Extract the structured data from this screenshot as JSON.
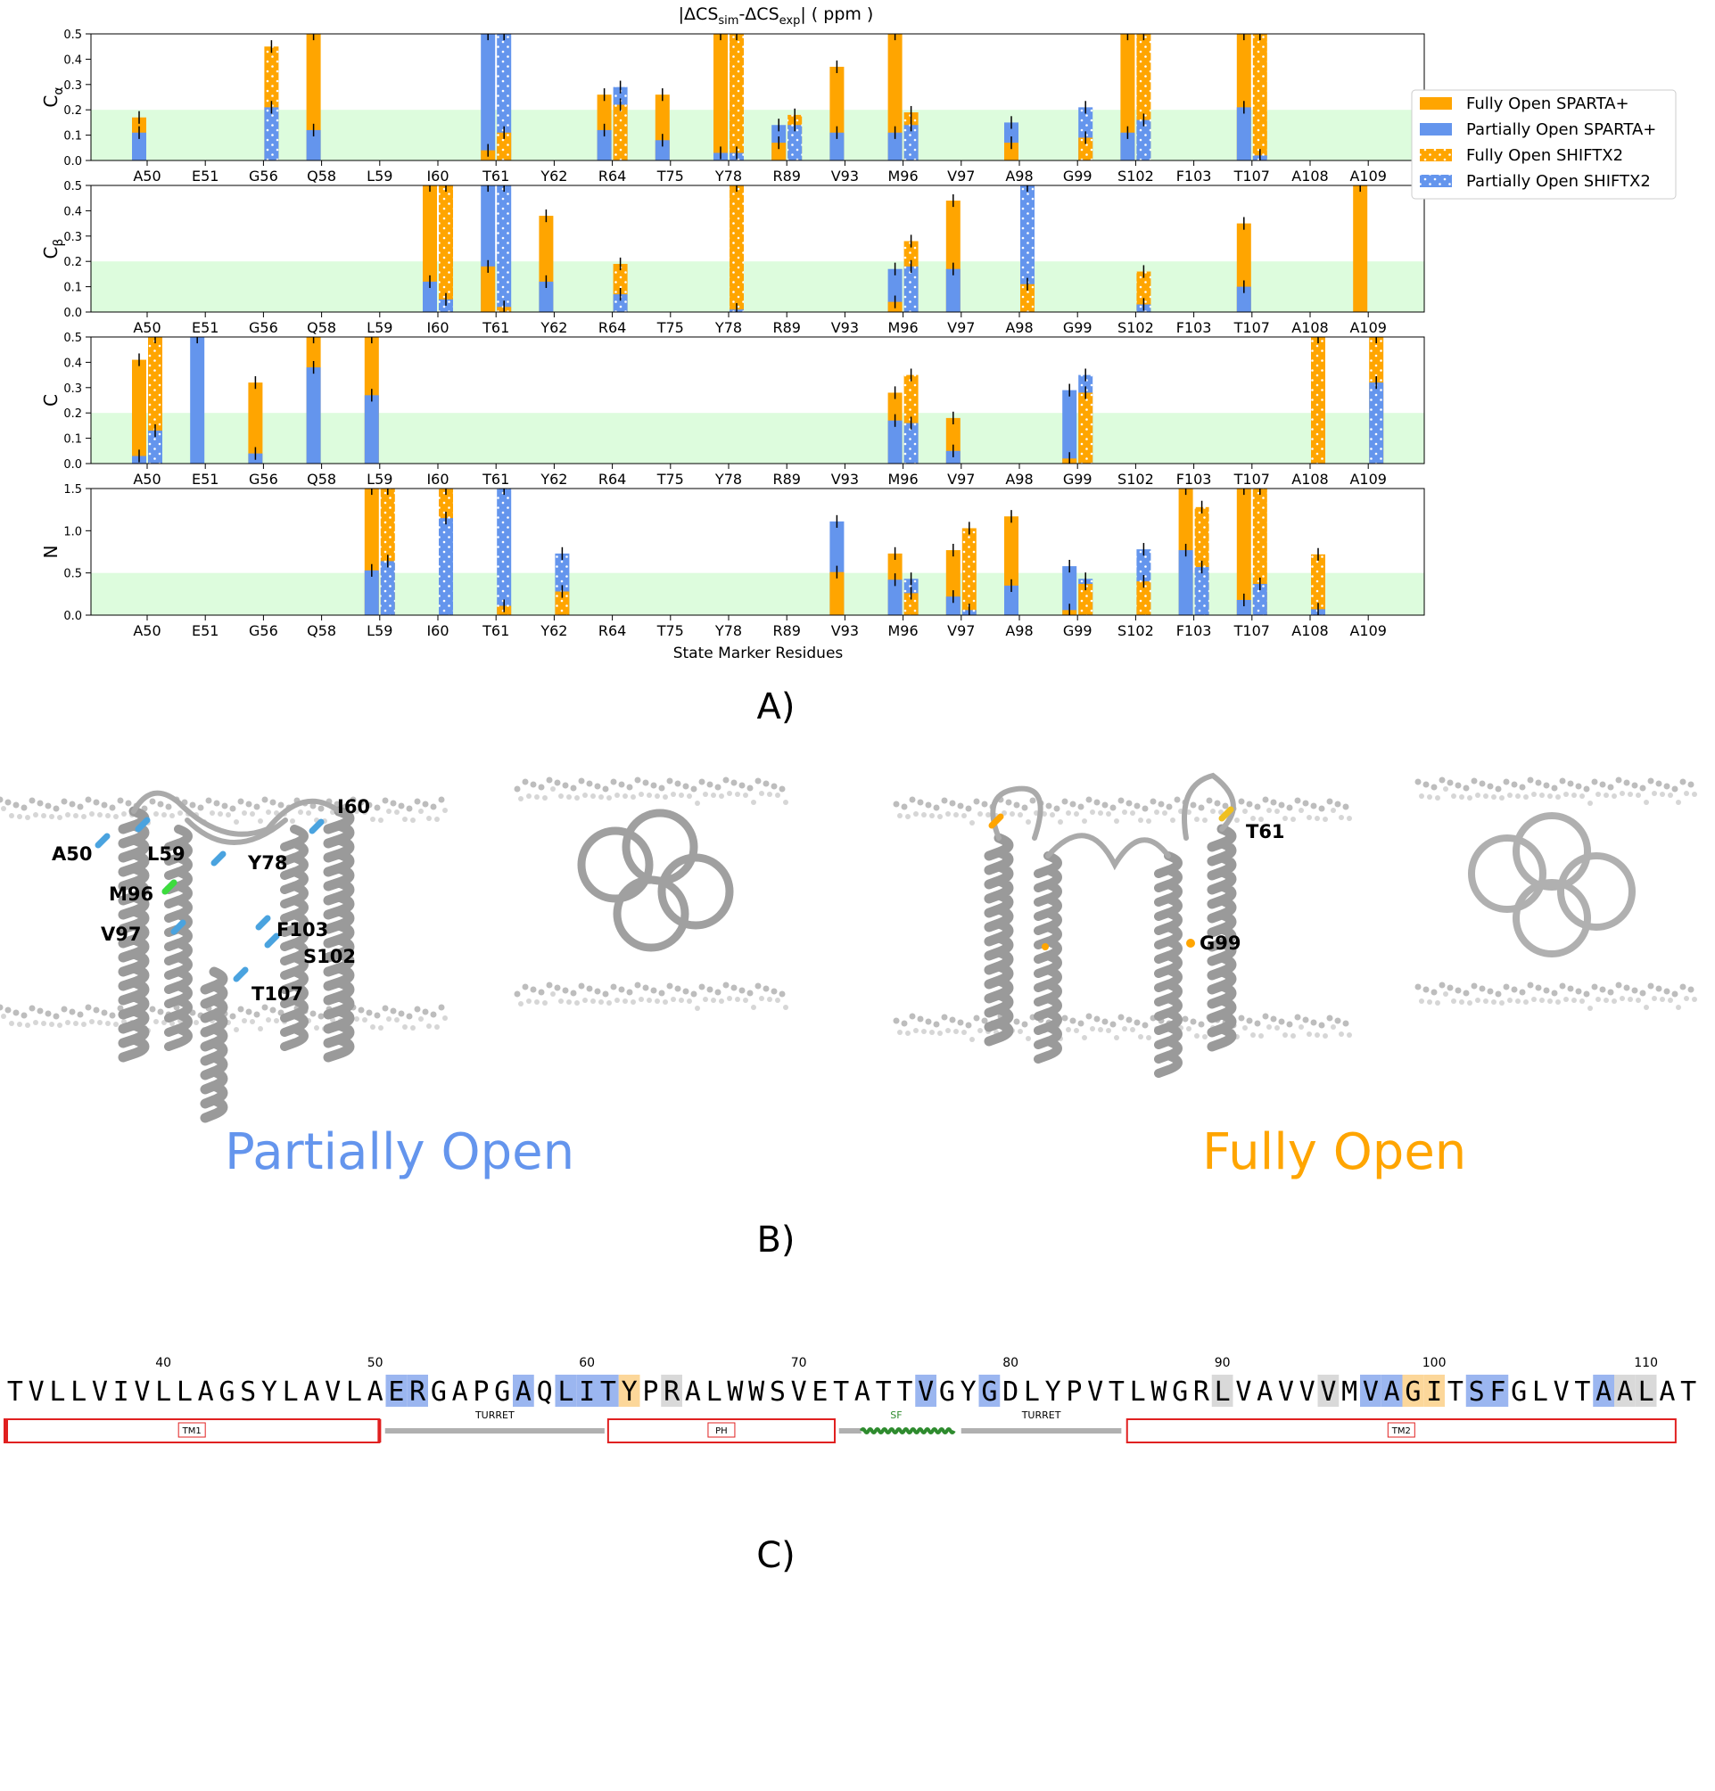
{
  "figure": {
    "top_title": "|ΔCSsim-ΔCSexp|  ( ppm )",
    "top_title_parts": {
      "pre": "|ΔCS",
      "sub1": "sim",
      "mid": "-ΔCS",
      "sub2": "exp",
      "post": "|  ( ppm )"
    },
    "xlabel": "State Marker Residues",
    "panel_labels": {
      "a": "A)",
      "b": "B)",
      "c": "C)"
    },
    "colors": {
      "fully": "#FFA500",
      "partial": "#6495ED",
      "threshold": "#DDFCDD",
      "errorbar": "#000000"
    }
  },
  "chart_data": [
    {
      "type": "bar",
      "ylabel": "Cα",
      "ylabel_parts": {
        "main": "C",
        "sub": "α"
      },
      "ylim": [
        0,
        0.5
      ],
      "yticks": [
        "0.0",
        "0.1",
        "0.2",
        "0.3",
        "0.4",
        "0.5"
      ],
      "threshold": 0.2,
      "categories": [
        "A50",
        "E51",
        "G56",
        "Q58",
        "L59",
        "I60",
        "T61",
        "Y62",
        "R64",
        "T75",
        "Y78",
        "R89",
        "V93",
        "M96",
        "V97",
        "A98",
        "G99",
        "S102",
        "F103",
        "T107",
        "A108",
        "A109"
      ],
      "series": [
        {
          "name": "Fully Open SPARTA+",
          "values": [
            0.17,
            0,
            0,
            0.5,
            0,
            0,
            0.04,
            0,
            0.26,
            0.26,
            0.5,
            0.07,
            0.37,
            0.5,
            0,
            0.07,
            0,
            0.5,
            0,
            0.5,
            0,
            0
          ]
        },
        {
          "name": "Partially Open SPARTA+",
          "values": [
            0.11,
            0,
            0,
            0.12,
            0,
            0,
            0.5,
            0,
            0.12,
            0.08,
            0.03,
            0.14,
            0.11,
            0.11,
            0,
            0.15,
            0,
            0.11,
            0,
            0.21,
            0,
            0
          ]
        },
        {
          "name": "Fully Open SHIFTX2",
          "values": [
            0,
            0,
            0.45,
            0,
            0,
            0,
            0.11,
            0,
            0.22,
            0,
            0.5,
            0.18,
            0,
            0.19,
            0,
            0,
            0.09,
            0.5,
            0,
            0.5,
            0,
            0
          ]
        },
        {
          "name": "Partially Open SHIFTX2",
          "values": [
            0,
            0,
            0.21,
            0,
            0,
            0,
            0.5,
            0,
            0.29,
            0,
            0.03,
            0.14,
            0,
            0.14,
            0,
            0,
            0.21,
            0.16,
            0,
            0.02,
            0,
            0
          ]
        }
      ]
    },
    {
      "type": "bar",
      "ylabel": "Cβ",
      "ylabel_parts": {
        "main": "C",
        "sub": "β"
      },
      "ylim": [
        0,
        0.5
      ],
      "yticks": [
        "0.0",
        "0.1",
        "0.2",
        "0.3",
        "0.4",
        "0.5"
      ],
      "threshold": 0.2,
      "categories": [
        "A50",
        "E51",
        "G56",
        "Q58",
        "L59",
        "I60",
        "T61",
        "Y62",
        "R64",
        "T75",
        "Y78",
        "R89",
        "V93",
        "M96",
        "V97",
        "A98",
        "G99",
        "S102",
        "F103",
        "T107",
        "A108",
        "A109"
      ],
      "series": [
        {
          "name": "Fully Open SPARTA+",
          "values": [
            0,
            0,
            0,
            0,
            0,
            0.5,
            0.18,
            0.38,
            0,
            0,
            0,
            0,
            0,
            0.04,
            0.44,
            0,
            0,
            0,
            0,
            0.35,
            0,
            0.5
          ]
        },
        {
          "name": "Partially Open SPARTA+",
          "values": [
            0,
            0,
            0,
            0,
            0,
            0.12,
            0.5,
            0.12,
            0,
            0,
            0,
            0,
            0,
            0.17,
            0.17,
            0,
            0,
            0,
            0,
            0.1,
            0,
            0
          ]
        },
        {
          "name": "Fully Open SHIFTX2",
          "values": [
            0,
            0,
            0,
            0,
            0,
            0.5,
            0.02,
            0,
            0.19,
            0,
            0.5,
            0,
            0,
            0.28,
            0,
            0.11,
            0,
            0.16,
            0,
            0,
            0,
            0
          ]
        },
        {
          "name": "Partially Open SHIFTX2",
          "values": [
            0,
            0,
            0,
            0,
            0,
            0.05,
            0.5,
            0,
            0.07,
            0,
            0.01,
            0,
            0,
            0.18,
            0,
            0.5,
            0,
            0.03,
            0,
            0,
            0,
            0
          ]
        }
      ]
    },
    {
      "type": "bar",
      "ylabel": "C",
      "ylabel_parts": {
        "main": "C",
        "sub": ""
      },
      "ylim": [
        0,
        0.5
      ],
      "yticks": [
        "0.0",
        "0.1",
        "0.2",
        "0.3",
        "0.4",
        "0.5"
      ],
      "threshold": 0.2,
      "categories": [
        "A50",
        "E51",
        "G56",
        "Q58",
        "L59",
        "I60",
        "T61",
        "Y62",
        "R64",
        "T75",
        "Y78",
        "R89",
        "V93",
        "M96",
        "V97",
        "A98",
        "G99",
        "S102",
        "F103",
        "T107",
        "A108",
        "A109"
      ],
      "series": [
        {
          "name": "Fully Open SPARTA+",
          "values": [
            0.41,
            0,
            0.32,
            0.5,
            0.5,
            0,
            0,
            0,
            0,
            0,
            0,
            0,
            0,
            0.28,
            0.18,
            0,
            0.02,
            0,
            0,
            0,
            0,
            0
          ]
        },
        {
          "name": "Partially Open SPARTA+",
          "values": [
            0.03,
            0.5,
            0.04,
            0.38,
            0.27,
            0,
            0,
            0,
            0,
            0,
            0,
            0,
            0,
            0.17,
            0.05,
            0,
            0.29,
            0,
            0,
            0,
            0,
            0
          ]
        },
        {
          "name": "Fully Open SHIFTX2",
          "values": [
            0.5,
            0,
            0,
            0,
            0,
            0,
            0,
            0,
            0,
            0,
            0,
            0,
            0,
            0.35,
            0,
            0,
            0.28,
            0,
            0,
            0,
            0.5,
            0.5
          ]
        },
        {
          "name": "Partially Open SHIFTX2",
          "values": [
            0.13,
            0,
            0,
            0,
            0,
            0,
            0,
            0,
            0,
            0,
            0,
            0,
            0,
            0.16,
            0,
            0,
            0.35,
            0,
            0,
            0,
            0,
            0.32
          ]
        }
      ]
    },
    {
      "type": "bar",
      "ylabel": "N",
      "ylabel_parts": {
        "main": "N",
        "sub": ""
      },
      "ylim": [
        0,
        1.5
      ],
      "yticks": [
        "0.0",
        "0.5",
        "1.0",
        "1.5"
      ],
      "threshold": 0.5,
      "categories": [
        "A50",
        "E51",
        "G56",
        "Q58",
        "L59",
        "I60",
        "T61",
        "Y62",
        "R64",
        "T75",
        "Y78",
        "R89",
        "V93",
        "M96",
        "V97",
        "A98",
        "G99",
        "S102",
        "F103",
        "T107",
        "A108",
        "A109"
      ],
      "series": [
        {
          "name": "Fully Open SPARTA+",
          "values": [
            0,
            0,
            0,
            0,
            1.5,
            0,
            0,
            0,
            0,
            0,
            0,
            0,
            0.51,
            0.73,
            0.77,
            1.17,
            0.06,
            0,
            1.5,
            1.5,
            0,
            0
          ]
        },
        {
          "name": "Partially Open SPARTA+",
          "values": [
            0,
            0,
            0,
            0,
            0.53,
            0,
            0,
            0,
            0,
            0,
            0,
            0,
            1.11,
            0.42,
            0.22,
            0.35,
            0.58,
            0,
            0.77,
            0.18,
            0,
            0
          ]
        },
        {
          "name": "Fully Open SHIFTX2",
          "values": [
            0,
            0,
            0,
            0,
            1.5,
            1.5,
            0.11,
            0.28,
            0,
            0,
            0,
            0,
            0,
            0.26,
            1.03,
            0,
            0.37,
            0.4,
            1.28,
            1.5,
            0.72,
            0
          ]
        },
        {
          "name": "Partially Open SHIFTX2",
          "values": [
            0,
            0,
            0,
            0,
            0.64,
            1.15,
            1.5,
            0.73,
            0,
            0,
            0,
            0,
            0,
            0.43,
            0.06,
            0,
            0.43,
            0.78,
            0.57,
            0.37,
            0.07,
            0
          ]
        }
      ]
    }
  ],
  "legend": {
    "items": [
      {
        "label": "Fully Open SPARTA+",
        "color": "#FFA500",
        "pattern": "solid"
      },
      {
        "label": "Partially Open SPARTA+",
        "color": "#6495ED",
        "pattern": "solid"
      },
      {
        "label": "Fully Open SHIFTX2",
        "color": "#FFA500",
        "pattern": "dots"
      },
      {
        "label": "Partially Open SHIFTX2",
        "color": "#6495ED",
        "pattern": "dots"
      }
    ]
  },
  "structures": {
    "partial_title": "Partially Open",
    "fully_title": "Fully Open",
    "partial_labels": [
      "A50",
      "L59",
      "Y78",
      "I60",
      "M96",
      "V97",
      "F103",
      "S102",
      "T107"
    ],
    "fully_labels": [
      "T61",
      "G99"
    ]
  },
  "sequence": {
    "residues": "TVLLVIVLLAGSYLAVLAERGAPGAQLITYPRALWWSVETATTVGYGDLYPVTLWGRLVAVVVMVAGITSFGLVTAALAT",
    "start_number": 33,
    "number_labels": [
      "40",
      "50",
      "60",
      "70",
      "80",
      "90",
      "100",
      "110"
    ],
    "highlight_blue": [
      18,
      19,
      24,
      26,
      27,
      28,
      43,
      46,
      64,
      65,
      69,
      70,
      75
    ],
    "highlight_orange": [
      29,
      66,
      67
    ],
    "highlight_gray": [
      31,
      57,
      62,
      76,
      77
    ],
    "domains": [
      {
        "label": "TM1",
        "kind": "box"
      },
      {
        "label": "TURRET",
        "kind": "line"
      },
      {
        "label": "PH",
        "kind": "box"
      },
      {
        "label": "SF",
        "kind": "wave"
      },
      {
        "label": "TURRET",
        "kind": "line"
      },
      {
        "label": "TM2",
        "kind": "box"
      }
    ]
  }
}
